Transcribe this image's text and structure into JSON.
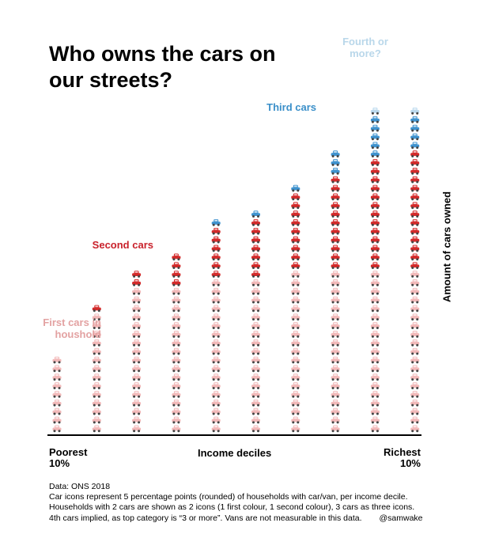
{
  "header": {
    "title": "Who owns the cars on our streets?"
  },
  "colors": {
    "first": "#f2b9b9",
    "second": "#d42a2a",
    "third": "#3f93cf",
    "fourth": "#bcdaee"
  },
  "labels": {
    "first": "First cars in houshold",
    "second": "Second cars",
    "third": "Third cars",
    "fourth": "Fourth or more?"
  },
  "chart_data": {
    "type": "bar",
    "subtype": "stacked-pictogram",
    "unit_note": "each car icon = 5 percentage points of households",
    "icon_value": 5,
    "categories": [
      "1",
      "2",
      "3",
      "4",
      "5",
      "6",
      "7",
      "8",
      "9",
      "10"
    ],
    "series": [
      {
        "name": "First cars in houshold",
        "key": "first",
        "values": [
          45,
          70,
          85,
          85,
          90,
          90,
          95,
          95,
          95,
          95
        ]
      },
      {
        "name": "Second cars",
        "key": "second",
        "values": [
          0,
          5,
          10,
          20,
          30,
          35,
          45,
          55,
          65,
          70
        ]
      },
      {
        "name": "Third cars",
        "key": "third",
        "values": [
          0,
          0,
          0,
          0,
          5,
          5,
          5,
          15,
          25,
          20
        ]
      },
      {
        "name": "Fourth or more?",
        "key": "fourth",
        "values": [
          0,
          0,
          0,
          0,
          0,
          0,
          0,
          0,
          5,
          5
        ]
      }
    ],
    "xlabel": "Income deciles",
    "ylabel": "Amount of cars owned",
    "x_left_label": "Poorest 10%",
    "x_right_label": "Richest 10%"
  },
  "x_axis": {
    "left_line1": "Poorest",
    "left_line2": "10%",
    "center": "Income deciles",
    "right_line1": "Richest",
    "right_line2": "10%"
  },
  "footnote": {
    "line1": "Data: ONS 2018",
    "line2": "Car icons represent 5 percentage points (rounded) of households with car/van, per income decile.",
    "line3": "Households with 2 cars are shown as 2 icons (1 first colour, 1 second colour), 3 cars as three icons.",
    "line4": "4th cars implied, as top category is “3 or more”. Vans are not measurable in this data.",
    "credit": "@samwake"
  }
}
